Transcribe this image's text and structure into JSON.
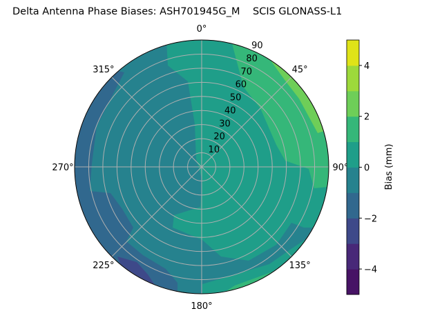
{
  "chart_data": {
    "type": "polar-contour",
    "title": "Delta Antenna Phase Biases: ASH701945G_M    SCIS GLONASS-L1",
    "angle_ticks": [
      {
        "deg": 0,
        "label": "0°"
      },
      {
        "deg": 45,
        "label": "45°"
      },
      {
        "deg": 90,
        "label": "90°"
      },
      {
        "deg": 135,
        "label": "135°"
      },
      {
        "deg": 180,
        "label": "180°"
      },
      {
        "deg": 225,
        "label": "225°"
      },
      {
        "deg": 270,
        "label": "270°"
      },
      {
        "deg": 315,
        "label": "315°"
      }
    ],
    "angle_direction": "clockwise",
    "zero_location": "top",
    "radial_ticks": [
      10,
      20,
      30,
      40,
      50,
      60,
      70,
      80,
      90
    ],
    "radial_range": [
      0,
      90
    ],
    "grid": true,
    "levels": [
      -5,
      -4,
      -3,
      -2,
      -1,
      0,
      1,
      2,
      3,
      4,
      5
    ],
    "colormap": "viridis",
    "level_colors": [
      "#471365",
      "#482878",
      "#3e4989",
      "#31688e",
      "#26828e",
      "#1f9e89",
      "#35b779",
      "#6ece58",
      "#9dd93b",
      "#dfe318"
    ],
    "colorbar": {
      "label": "Bias (mm)",
      "ticks": [
        -4,
        -2,
        0,
        2,
        4
      ],
      "range": [
        -5,
        5
      ]
    },
    "regions_summary": [
      {
        "level_range": [
          -1,
          0
        ],
        "area": "western half and south-west (background)"
      },
      {
        "level_range": [
          0,
          1
        ],
        "area": "eastern half, north to south-east"
      },
      {
        "level_range": [
          1,
          2
        ],
        "area": "north-east rim at 50–90 elevation; south-southeast rim"
      },
      {
        "level_range": [
          2,
          3
        ],
        "area": "north-east edge near 45–80°"
      },
      {
        "level_range": [
          -2,
          -1
        ],
        "area": "western rim from 300° to 200°"
      },
      {
        "level_range": [
          -3,
          -2
        ],
        "area": "small patches at western rim ~285° and south-west ~215°"
      }
    ]
  }
}
